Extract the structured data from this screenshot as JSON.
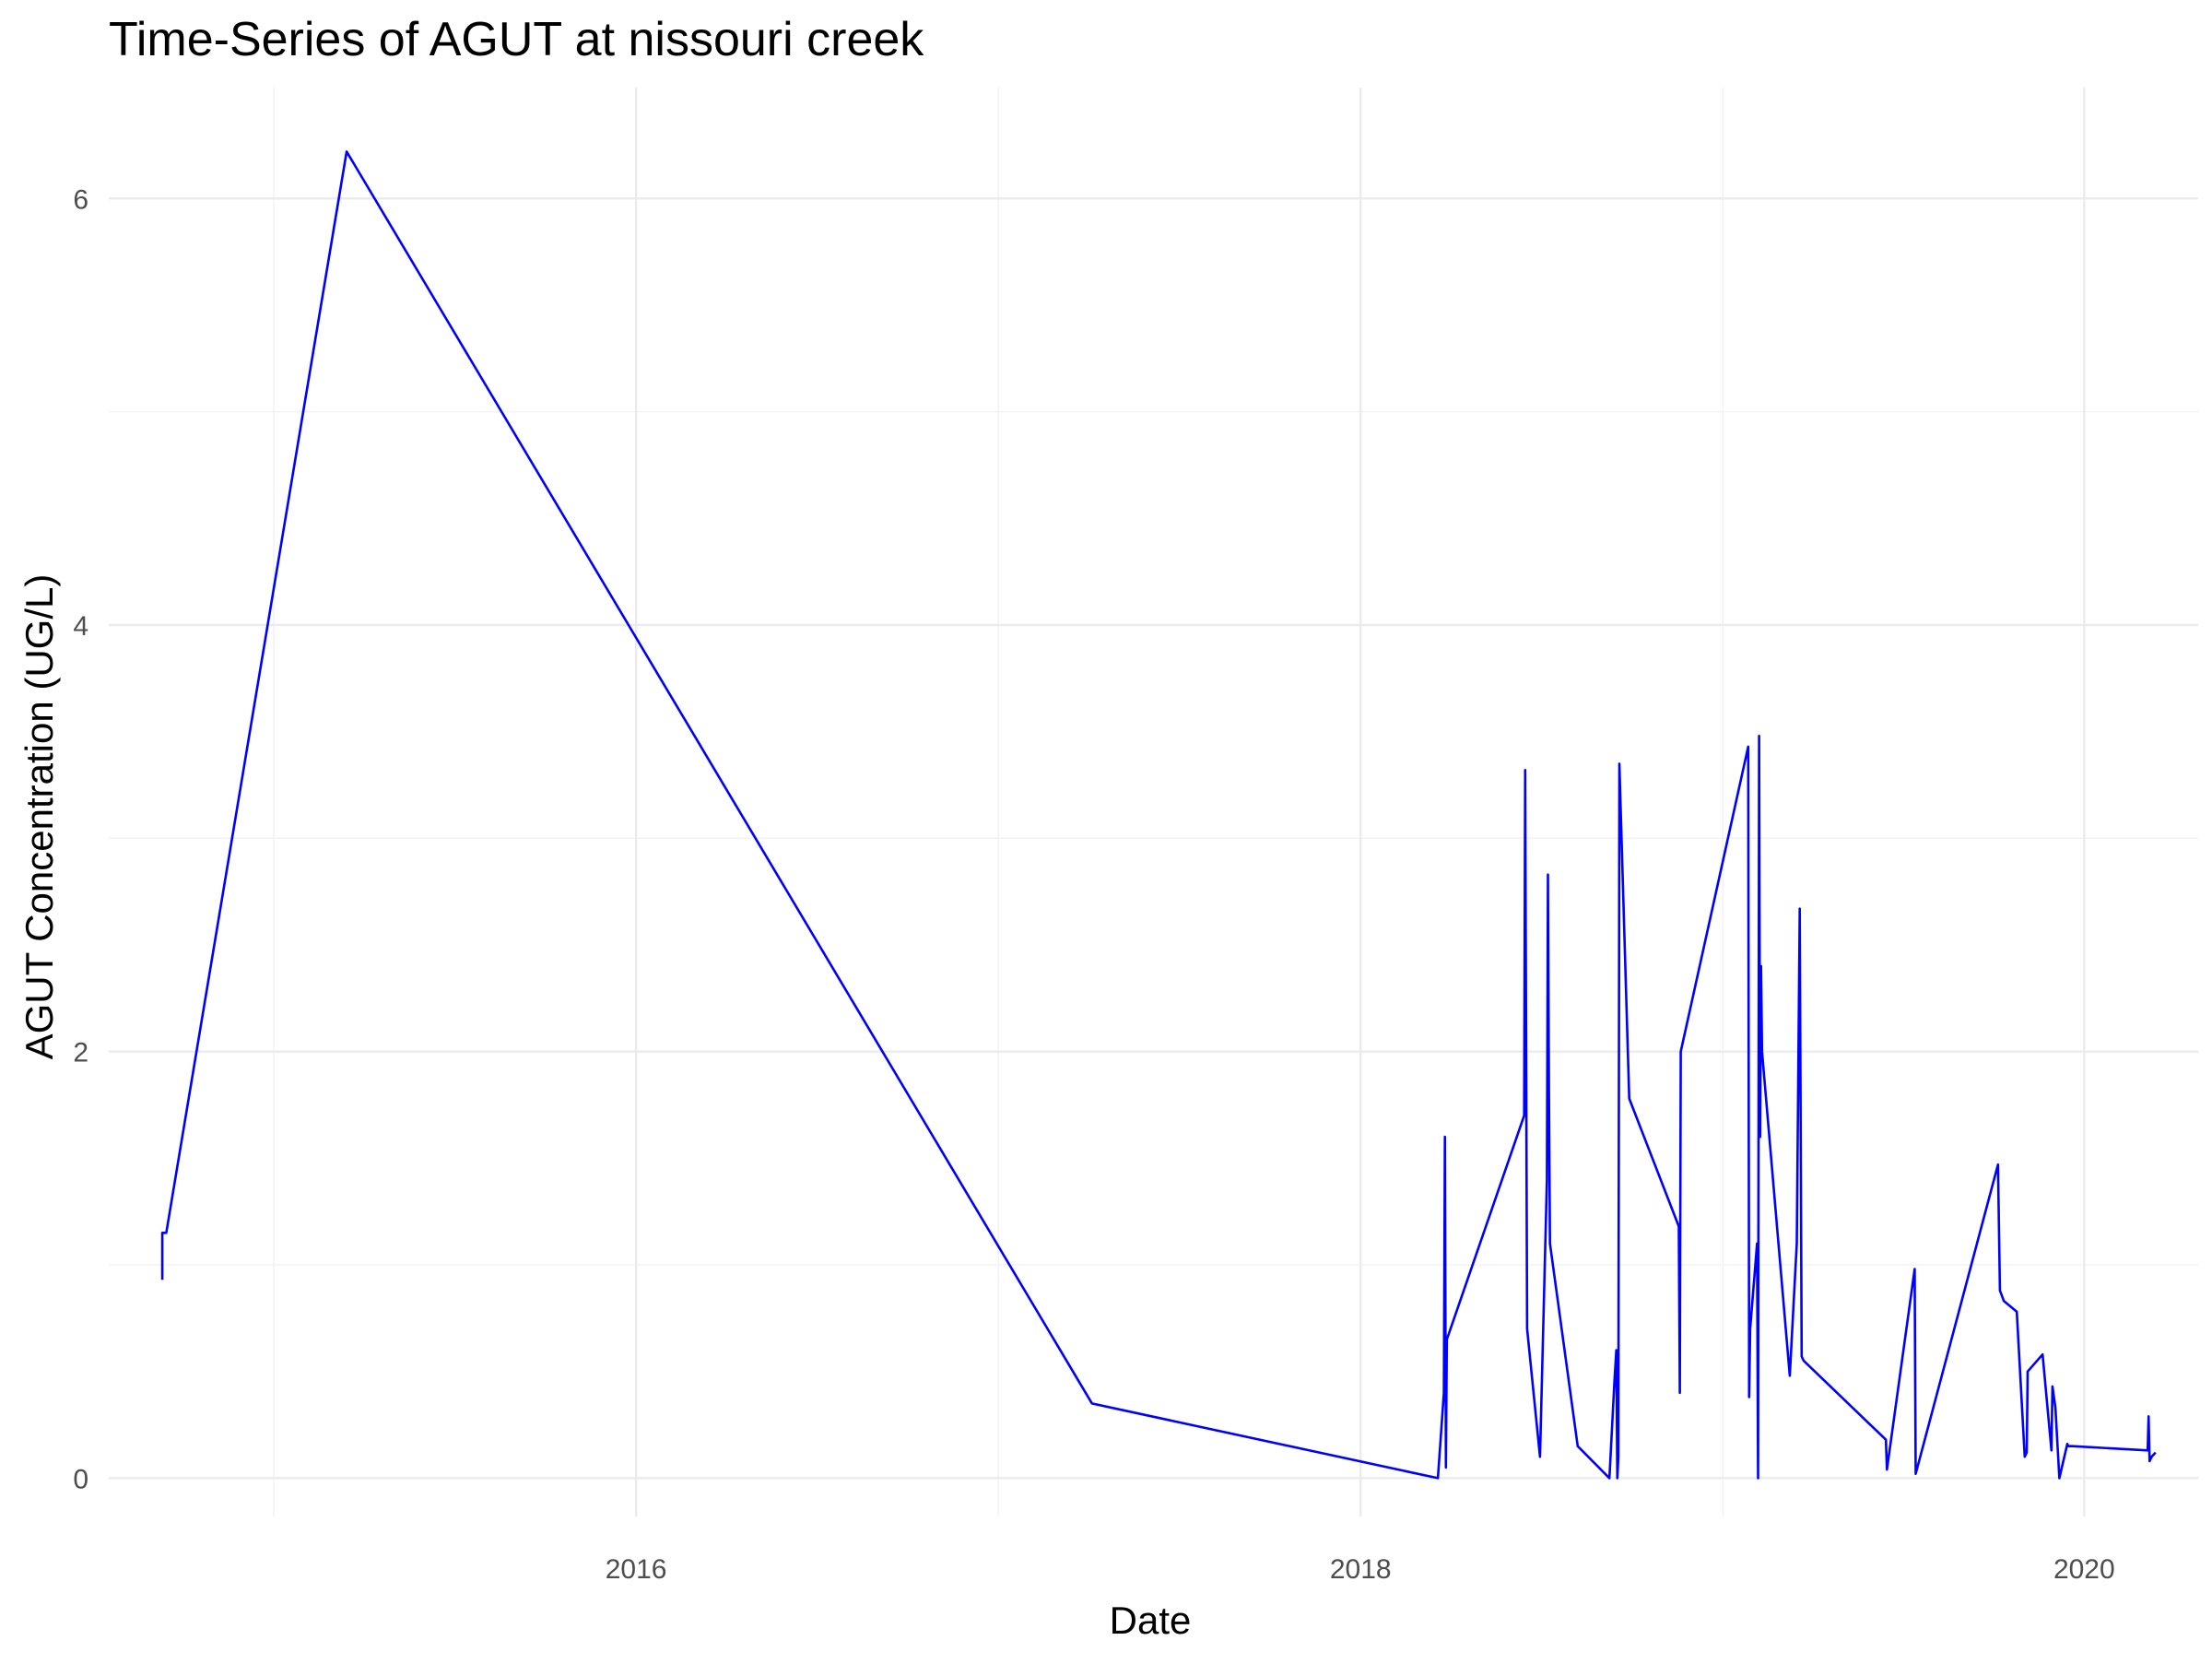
{
  "chart_data": {
    "type": "line",
    "title": "Time-Series of AGUT at nissouri creek",
    "xlabel": "Date",
    "ylabel": "AGUT Concentration (UG/L)",
    "xlim": [
      "2014-07-18",
      "2020-04-25"
    ],
    "ylim": [
      -0.18,
      6.52
    ],
    "x_ticks": [
      "2016-01-01",
      "2018-01-01",
      "2020-01-01"
    ],
    "x_tick_labels": [
      "2016",
      "2018",
      "2020"
    ],
    "y_ticks": [
      0,
      2,
      4,
      6
    ],
    "y_tick_labels": [
      "0",
      "2",
      "4",
      "6"
    ],
    "grid": true,
    "line_color": "#0000ff",
    "series": [
      {
        "x": [
          "2014-09-10",
          "2014-09-10",
          "2014-09-14",
          "2015-03-15",
          "2017-04-05",
          "2018-03-20",
          "2018-03-26",
          "2018-03-27",
          "2018-03-28",
          "2018-03-29",
          "2018-06-15",
          "2018-06-16",
          "2018-06-18",
          "2018-07-01",
          "2018-07-08",
          "2018-07-09",
          "2018-07-10",
          "2018-07-11",
          "2018-08-08",
          "2018-09-09",
          "2018-09-14",
          "2018-09-16",
          "2018-09-17",
          "2018-09-18",
          "2018-09-19",
          "2018-09-20",
          "2018-09-29",
          "2018-11-18",
          "2018-11-19",
          "2018-11-20",
          "2019-01-27",
          "2019-01-28",
          "2019-01-29",
          "2019-02-05",
          "2019-02-06",
          "2019-02-07",
          "2019-02-08",
          "2019-02-09",
          "2019-02-10",
          "2019-03-10",
          "2019-03-17",
          "2019-03-20",
          "2019-03-22",
          "2019-03-24",
          "2019-06-15",
          "2019-06-16",
          "2019-07-14",
          "2019-07-15",
          "2019-10-06",
          "2019-10-08",
          "2019-10-12",
          "2019-10-25",
          "2019-11-02",
          "2019-11-04",
          "2019-11-05",
          "2019-11-20",
          "2019-11-29",
          "2019-11-30",
          "2019-12-03",
          "2019-12-07",
          "2019-12-15",
          "2019-12-16",
          "2019-12-20",
          "2020-03-05",
          "2020-03-06",
          "2020-03-07",
          "2020-03-09",
          "2020-03-13"
        ],
        "y": [
          0.93,
          1.15,
          1.15,
          6.22,
          0.35,
          0.0,
          0.4,
          1.6,
          0.05,
          0.65,
          1.7,
          3.32,
          0.7,
          0.1,
          1.4,
          2.83,
          1.8,
          1.1,
          0.15,
          0.0,
          0.45,
          0.6,
          0.0,
          0.1,
          3.35,
          3.2,
          1.78,
          1.18,
          0.4,
          2.0,
          3.43,
          0.38,
          0.7,
          1.1,
          0.0,
          3.48,
          1.6,
          2.4,
          2.0,
          0.48,
          1.1,
          2.67,
          0.57,
          0.55,
          0.18,
          0.04,
          0.98,
          0.02,
          1.47,
          0.88,
          0.83,
          0.78,
          0.1,
          0.12,
          0.5,
          0.58,
          0.13,
          0.43,
          0.33,
          0.0,
          0.16,
          0.15,
          0.15,
          0.13,
          0.29,
          0.08,
          0.1,
          0.12
        ]
      }
    ]
  }
}
